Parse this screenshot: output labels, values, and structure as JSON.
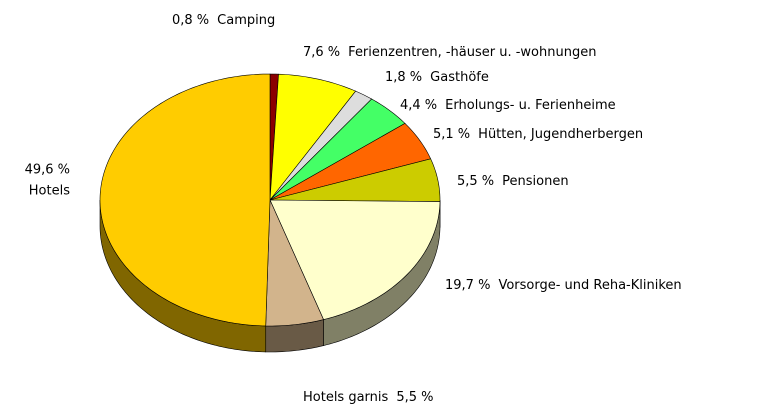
{
  "chart_data": {
    "type": "pie",
    "categories": [
      "Camping",
      "Ferienzentren, -häuser u. -wohnungen",
      "Gasthöfe",
      "Erholungs- u. Ferienheime",
      "Hütten, Jugendherbergen",
      "Pensionen",
      "Vorsorge- und Reha-Kliniken",
      "Hotels garnis",
      "Hotels"
    ],
    "values": [
      0.8,
      7.6,
      1.8,
      4.4,
      5.1,
      5.5,
      19.7,
      5.5,
      49.6
    ],
    "value_labels": [
      "0,8 %",
      "7,6 %",
      "1,8 %",
      "4,4 %",
      "5,1 %",
      "5,5 %",
      "19,7 %",
      "5,5 %",
      "49,6 %"
    ],
    "colors": [
      "#8b0000",
      "#ffff00",
      "#dddddd",
      "#44ff66",
      "#ff6600",
      "#cccc00",
      "#ffffcc",
      "#d2b48c",
      "#ffcc00"
    ]
  }
}
